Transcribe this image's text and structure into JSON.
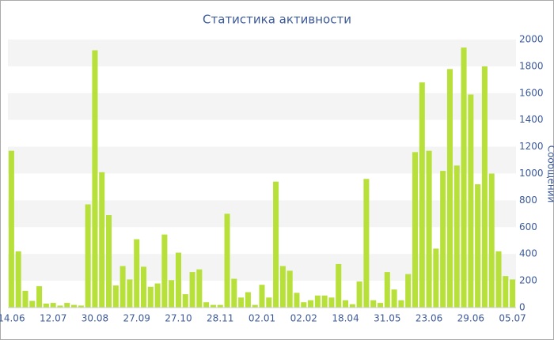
{
  "chart_data": {
    "type": "bar",
    "title": "Статистика активности",
    "y_axis_label": "Сообщений",
    "categories": [
      "14.06",
      null,
      null,
      null,
      null,
      null,
      "12.07",
      null,
      null,
      null,
      null,
      null,
      "30.08",
      null,
      null,
      null,
      null,
      null,
      "27.09",
      null,
      null,
      null,
      null,
      null,
      "27.10",
      null,
      null,
      null,
      null,
      null,
      "28.11",
      null,
      null,
      null,
      null,
      null,
      "02.01",
      null,
      null,
      null,
      null,
      null,
      "02.02",
      null,
      null,
      null,
      null,
      null,
      "18.04",
      null,
      null,
      null,
      null,
      null,
      "31.05",
      null,
      null,
      null,
      null,
      null,
      "23.06",
      null,
      null,
      null,
      null,
      null,
      "29.06",
      null,
      null,
      null,
      null,
      null,
      "05.07"
    ],
    "values": [
      1170,
      420,
      125,
      50,
      160,
      30,
      35,
      15,
      35,
      20,
      15,
      770,
      1920,
      1010,
      690,
      165,
      310,
      210,
      510,
      305,
      155,
      180,
      545,
      205,
      410,
      100,
      265,
      285,
      40,
      20,
      20,
      700,
      215,
      75,
      115,
      20,
      170,
      75,
      940,
      310,
      275,
      110,
      40,
      55,
      90,
      90,
      75,
      325,
      55,
      25,
      195,
      960,
      55,
      35,
      265,
      135,
      55,
      250,
      1160,
      1680,
      1170,
      440,
      1020,
      1780,
      1060,
      1940,
      1590,
      920,
      1800,
      1000,
      420,
      235,
      210
    ],
    "color": "#b8e03a",
    "ylim": [
      0,
      2000
    ],
    "yticks": [
      0,
      200,
      400,
      600,
      800,
      1000,
      1200,
      1400,
      1600,
      1800,
      2000
    ],
    "grid": true
  }
}
